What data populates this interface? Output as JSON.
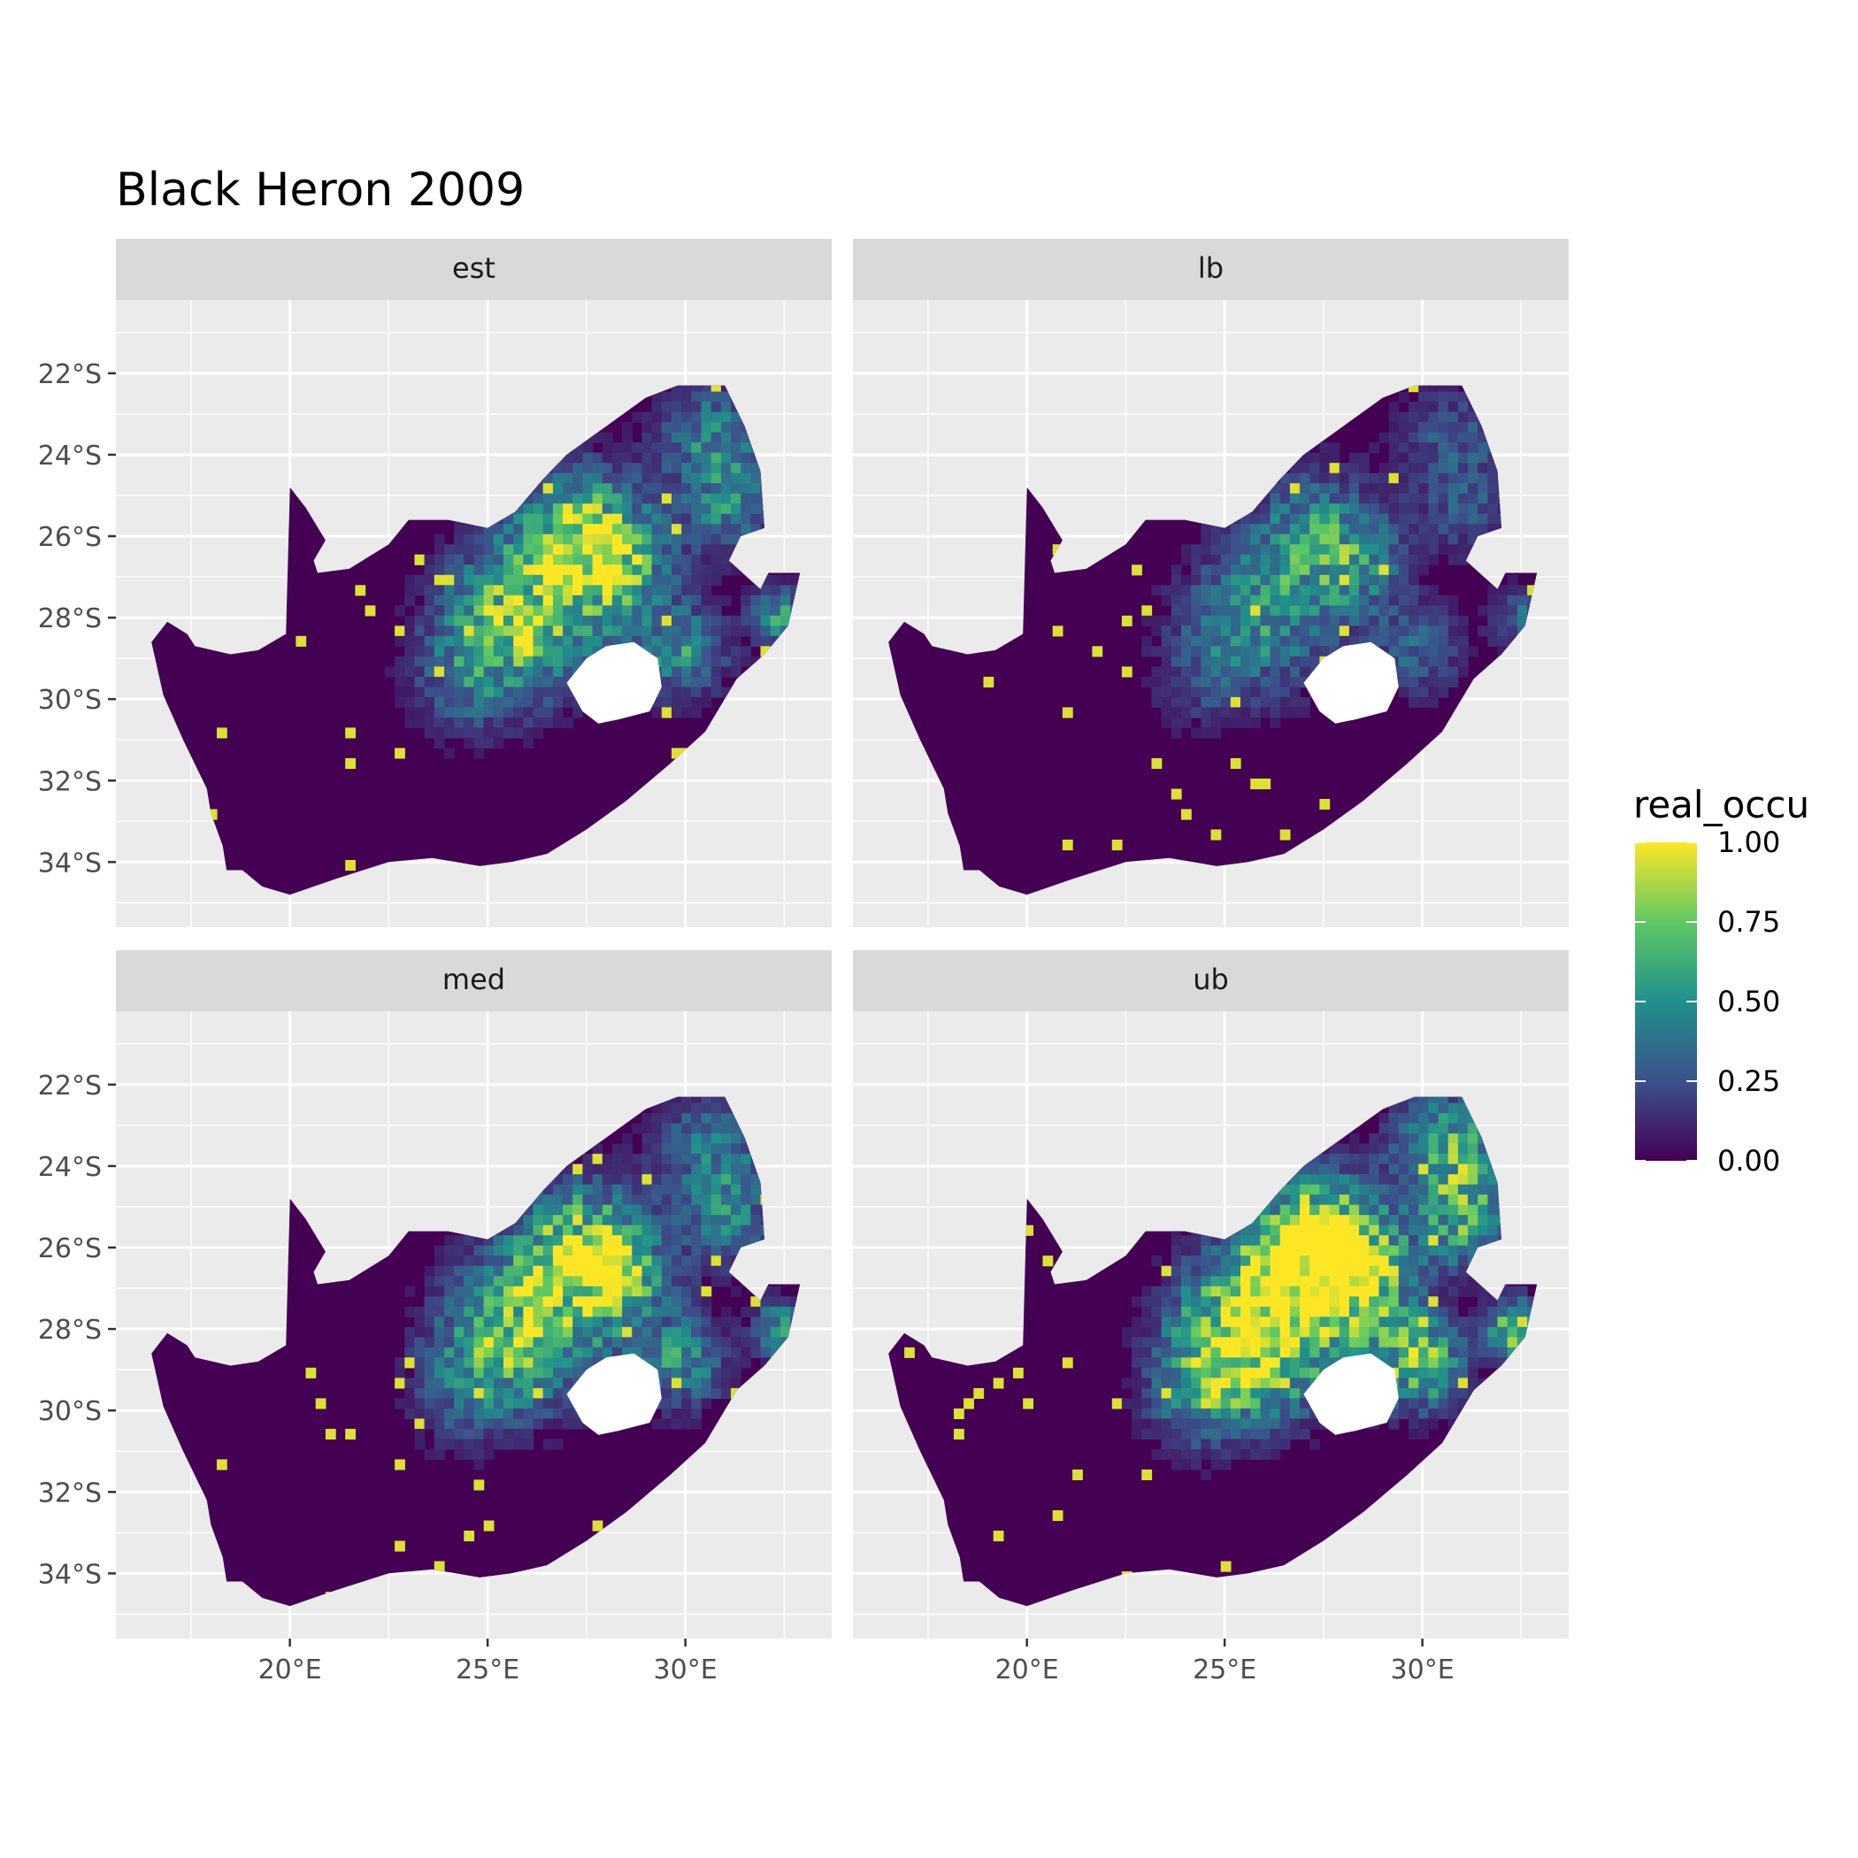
{
  "title": "Black Heron 2009",
  "facets": [
    {
      "label": "est",
      "intensity": 0.62
    },
    {
      "label": "lb",
      "intensity": 0.38
    },
    {
      "label": "med",
      "intensity": 0.6
    },
    {
      "label": "ub",
      "intensity": 0.9
    }
  ],
  "x_ticks": [
    "20°E",
    "25°E",
    "30°E"
  ],
  "y_ticks": [
    "22°S",
    "24°S",
    "26°S",
    "28°S",
    "30°S",
    "32°S",
    "34°S"
  ],
  "legend": {
    "title": "real_occu",
    "ticks": [
      "0.00",
      "0.25",
      "0.50",
      "0.75",
      "1.00"
    ],
    "colors": [
      "#440154",
      "#3b528b",
      "#21908c",
      "#5dc863",
      "#fde725"
    ]
  },
  "colors": {
    "panel_bg": "#ebebeb",
    "strip_bg": "#d9d9d9",
    "grid": "#ffffff",
    "land_low": "#440154",
    "lesotho_hole": "#ffffff"
  }
}
